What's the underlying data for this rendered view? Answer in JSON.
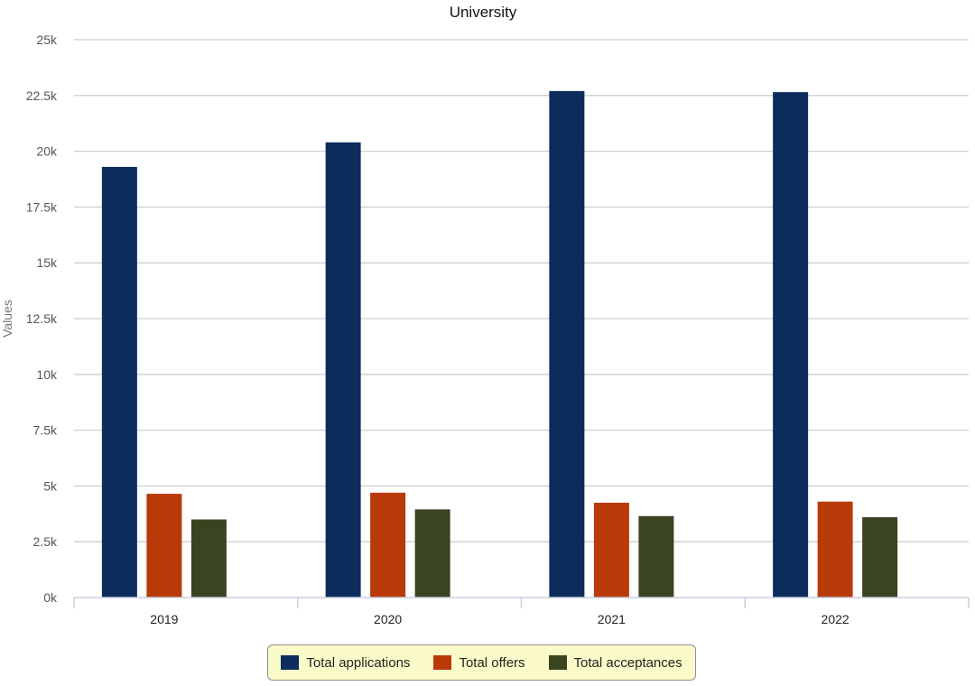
{
  "chart_data": {
    "type": "bar",
    "title": "University",
    "xlabel": "",
    "ylabel": "Values",
    "categories": [
      "2019",
      "2020",
      "2021",
      "2022"
    ],
    "series": [
      {
        "name": "Total applications",
        "color": "#0c2c5c",
        "values": [
          19300,
          20400,
          22700,
          22650
        ]
      },
      {
        "name": "Total offers",
        "color": "#b93a09",
        "values": [
          4650,
          4700,
          4250,
          4300
        ]
      },
      {
        "name": "Total acceptances",
        "color": "#3a4420",
        "values": [
          3500,
          3950,
          3650,
          3600
        ]
      }
    ],
    "ylim": [
      0,
      25000
    ],
    "yticks": [
      0,
      2500,
      5000,
      7500,
      10000,
      12500,
      15000,
      17500,
      20000,
      22500,
      25000
    ],
    "ytick_labels": [
      "0k",
      "2.5k",
      "5k",
      "7.5k",
      "10k",
      "12.5k",
      "15k",
      "17.5k",
      "20k",
      "22.5k",
      "25k"
    ],
    "grid": true,
    "legend_position": "bottom-center"
  }
}
